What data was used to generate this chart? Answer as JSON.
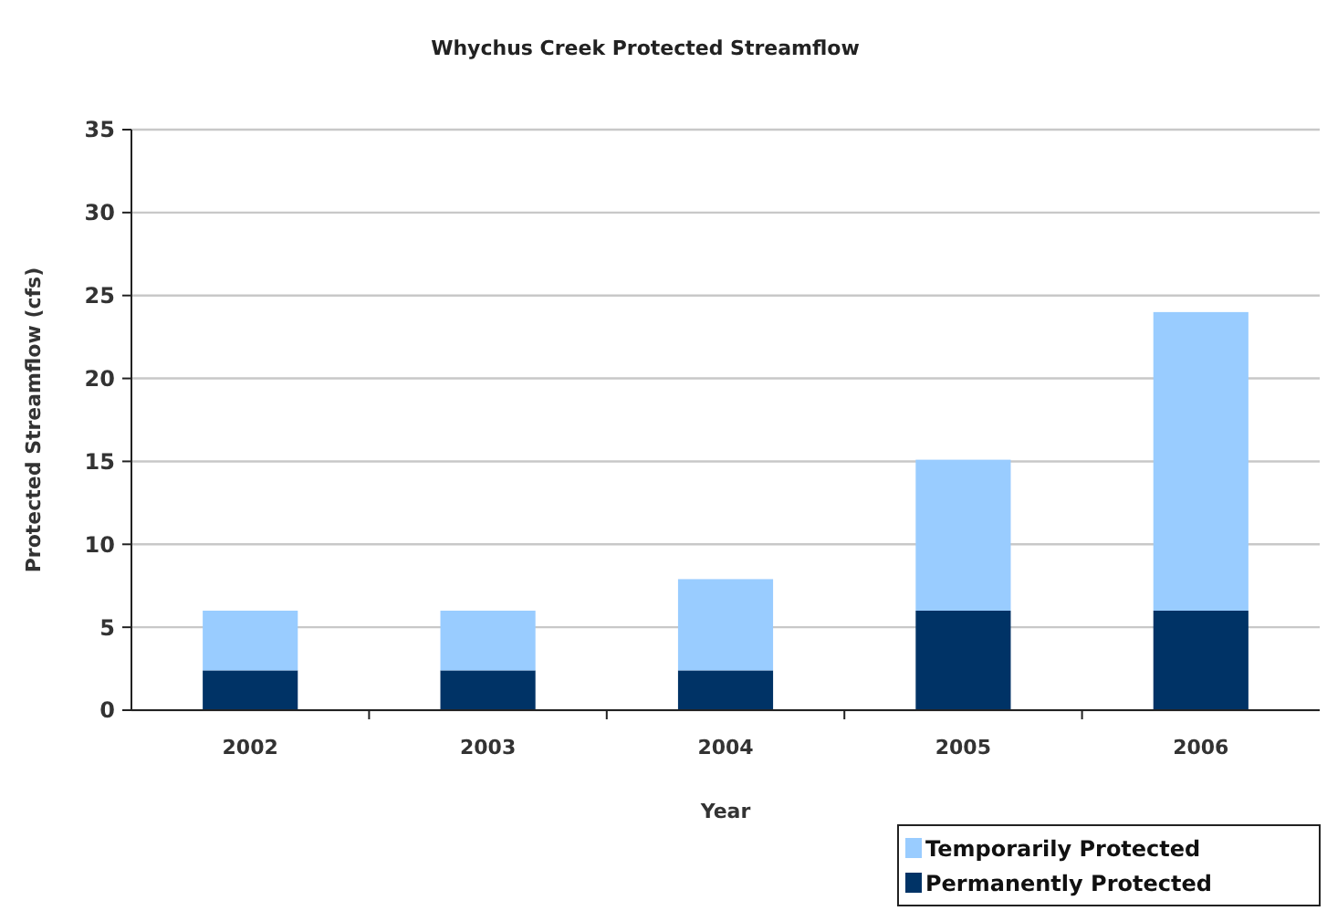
{
  "chart_data": {
    "type": "bar",
    "title": "Whychus Creek Protected Streamflow",
    "xlabel": "Year",
    "ylabel": "Protected Streamflow (cfs)",
    "categories": [
      "2002",
      "2003",
      "2004",
      "2005",
      "2006"
    ],
    "stacked": true,
    "series": [
      {
        "name": "Permanently Protected",
        "color": "#003366",
        "values": [
          2.4,
          2.4,
          2.4,
          6.0,
          6.0
        ]
      },
      {
        "name": "Temporarily Protected",
        "color": "#99ccff",
        "values": [
          3.6,
          3.6,
          5.5,
          9.1,
          18.0
        ]
      }
    ],
    "ylim": [
      0,
      35
    ],
    "yticks": [
      0,
      5,
      10,
      15,
      20,
      25,
      30,
      35
    ],
    "grid": "y",
    "legend": "bottom right"
  }
}
